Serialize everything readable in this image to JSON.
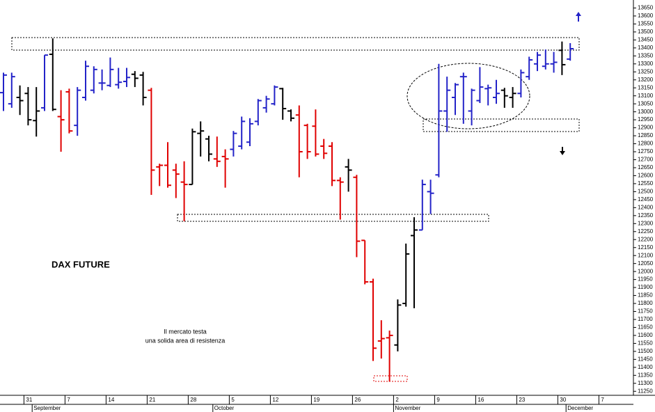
{
  "chart_data": {
    "type": "ohlc",
    "title": "DAX FUTURE",
    "annotations": [
      "Il mercato testa",
      "una solida area di resistenza"
    ],
    "categories": [
      null,
      null,
      null,
      "31",
      null,
      null,
      null,
      null,
      "7",
      null,
      null,
      null,
      null,
      "14",
      null,
      null,
      null,
      null,
      "21",
      null,
      null,
      null,
      null,
      "28",
      null,
      null,
      null,
      null,
      "5",
      null,
      null,
      null,
      null,
      "12",
      null,
      null,
      null,
      null,
      "19",
      null,
      null,
      null,
      null,
      "26",
      null,
      null,
      null,
      null,
      "2",
      null,
      null,
      null,
      null,
      "9",
      null,
      null,
      null,
      null,
      "16",
      null,
      null,
      null,
      null,
      "23",
      null,
      null,
      null,
      null,
      "30",
      null,
      null,
      null,
      null,
      "7",
      null
    ],
    "months": [
      null,
      null,
      null,
      null,
      "September",
      null,
      null,
      null,
      null,
      null,
      null,
      null,
      null,
      null,
      null,
      null,
      null,
      null,
      null,
      null,
      null,
      null,
      null,
      null,
      null,
      null,
      "October",
      null,
      null,
      null,
      null,
      null,
      null,
      null,
      null,
      null,
      null,
      null,
      null,
      null,
      null,
      null,
      null,
      null,
      null,
      null,
      null,
      null,
      "November",
      null,
      null,
      null,
      null,
      null,
      null,
      null,
      null,
      null,
      null,
      null,
      null,
      null,
      null,
      null,
      null,
      null,
      null,
      null,
      null,
      "December",
      null,
      null,
      null,
      null,
      null
    ],
    "open": [
      13120,
      13050,
      13090,
      13115,
      12945,
      13025,
      13360,
      12970,
      13125,
      12915,
      13090,
      13135,
      13180,
      13165,
      13170,
      13190,
      13235,
      13230,
      13135,
      12655,
      12665,
      12635,
      12560,
      12545,
      12865,
      12830,
      12705,
      12720,
      12765,
      12785,
      12810,
      12940,
      13025,
      13050,
      13145,
      13005,
      12980,
      12915,
      12910,
      12785,
      12785,
      12570,
      12655,
      12590,
      12195,
      11935,
      11565,
      11585,
      11540,
      11800,
      12225,
      12260,
      12500,
      12605,
      13005,
      13090,
      13220,
      13005,
      13070,
      13145,
      13090,
      13135,
      13090,
      13115,
      13220,
      13300,
      13285,
      13300,
      13385,
      13330,
      null,
      null,
      null,
      null,
      null
    ],
    "high": [
      13245,
      13245,
      13165,
      13155,
      13155,
      13355,
      13460,
      13135,
      13145,
      13155,
      13320,
      13285,
      13265,
      13340,
      13275,
      13275,
      13255,
      13250,
      13150,
      12675,
      12810,
      12675,
      12690,
      12895,
      12940,
      12850,
      12845,
      12765,
      12880,
      12970,
      12960,
      13080,
      13100,
      13165,
      13150,
      13015,
      13040,
      12925,
      13015,
      12830,
      12810,
      12590,
      12705,
      12605,
      12195,
      11955,
      11695,
      11630,
      11825,
      12175,
      12340,
      12575,
      12575,
      13300,
      13220,
      13180,
      13245,
      13145,
      13280,
      13170,
      13200,
      13150,
      13155,
      13265,
      13345,
      13375,
      13390,
      13375,
      13440,
      13430,
      null,
      null,
      null,
      null,
      null
    ],
    "low": [
      13005,
      13025,
      12980,
      12915,
      12845,
      13005,
      13005,
      12750,
      12865,
      12850,
      13070,
      13115,
      13135,
      13155,
      13145,
      13155,
      13155,
      13040,
      12480,
      12535,
      12525,
      12460,
      12315,
      12545,
      12720,
      12690,
      12655,
      12525,
      12720,
      12765,
      12785,
      12915,
      12995,
      13040,
      12950,
      12940,
      12590,
      12705,
      12720,
      12705,
      12535,
      12325,
      12500,
      12090,
      11920,
      11440,
      11455,
      11310,
      11500,
      11780,
      11770,
      12260,
      12360,
      12590,
      12875,
      12980,
      12925,
      12915,
      13055,
      13040,
      13050,
      13025,
      13025,
      13090,
      13200,
      13255,
      13265,
      13245,
      13230,
      13320,
      null,
      null,
      null,
      null,
      null
    ],
    "close": [
      13230,
      13220,
      13070,
      12950,
      13005,
      13355,
      13015,
      12950,
      12880,
      13135,
      13285,
      13265,
      13180,
      13265,
      13185,
      13215,
      13210,
      13090,
      12635,
      12665,
      12540,
      12610,
      12545,
      12875,
      12880,
      12735,
      12690,
      12705,
      12865,
      12940,
      12925,
      13070,
      13080,
      13155,
      13020,
      12960,
      12750,
      12750,
      12735,
      12740,
      12570,
      12560,
      12635,
      12190,
      11935,
      11520,
      11580,
      11600,
      11790,
      12110,
      12260,
      12545,
      12490,
      13005,
      13135,
      13170,
      13220,
      13135,
      13155,
      13150,
      13115,
      13100,
      13115,
      13245,
      13325,
      13355,
      13300,
      13310,
      13295,
      13395,
      null,
      null,
      null,
      null,
      null
    ],
    "colors": [
      "#2323c8",
      "#2323c8",
      "#000000",
      "#000000",
      "#000000",
      "#2323c8",
      "#000000",
      "#e00000",
      "#e00000",
      "#2323c8",
      "#2323c8",
      "#2323c8",
      "#2323c8",
      "#2323c8",
      "#2323c8",
      "#2323c8",
      "#000000",
      "#000000",
      "#e00000",
      "#e00000",
      "#e00000",
      "#e00000",
      "#e00000",
      "#000000",
      "#000000",
      "#000000",
      "#e00000",
      "#e00000",
      "#2323c8",
      "#2323c8",
      "#2323c8",
      "#2323c8",
      "#2323c8",
      "#2323c8",
      "#000000",
      "#000000",
      "#e00000",
      "#e00000",
      "#e00000",
      "#e00000",
      "#e00000",
      "#e00000",
      "#000000",
      "#e00000",
      "#e00000",
      "#e00000",
      "#e00000",
      "#e00000",
      "#000000",
      "#000000",
      "#000000",
      "#2323c8",
      "#2323c8",
      "#2323c8",
      "#2323c8",
      "#2323c8",
      "#2323c8",
      "#2323c8",
      "#2323c8",
      "#2323c8",
      "#2323c8",
      "#000000",
      "#000000",
      "#2323c8",
      "#2323c8",
      "#2323c8",
      "#2323c8",
      "#2323c8",
      "#000000",
      "#2323c8",
      null,
      null,
      null,
      null,
      null
    ],
    "ylim": [
      11225,
      13700
    ],
    "yticks": [
      11250,
      11300,
      11350,
      11400,
      11450,
      11500,
      11550,
      11600,
      11650,
      11700,
      11750,
      11800,
      11850,
      11900,
      11950,
      12000,
      12050,
      12100,
      12150,
      12200,
      12250,
      12300,
      12350,
      12400,
      12450,
      12500,
      12550,
      12600,
      12650,
      12700,
      12750,
      12800,
      12850,
      12900,
      12950,
      13000,
      13050,
      13100,
      13150,
      13200,
      13250,
      13300,
      13350,
      13400,
      13450,
      13500,
      13550,
      13600,
      13650
    ]
  }
}
